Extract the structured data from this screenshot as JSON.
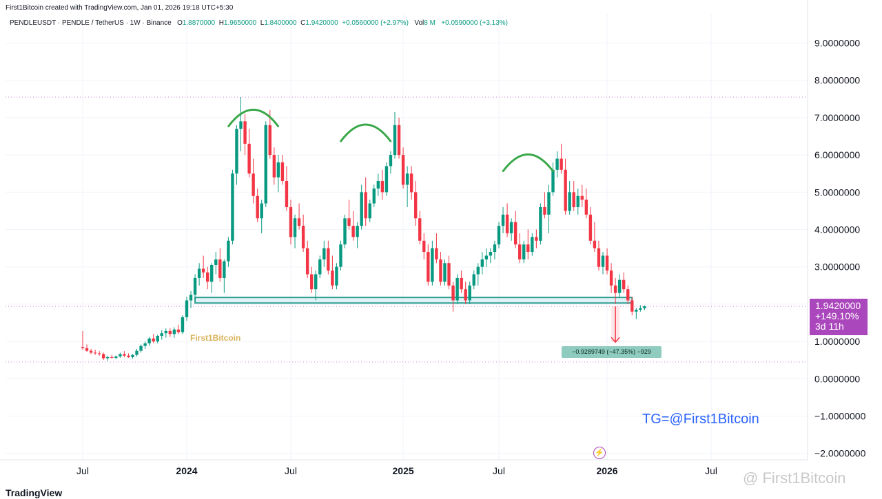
{
  "header": {
    "credit": "First1Bitcoin created with TradingView.com, Jan 01, 2026 19:18 UTC+5:30",
    "symbol": "PENDLEUSDT · PENDLE / TetherUS · 1W · Binance",
    "o_label": "O",
    "o_value": "1.8870000",
    "h_label": "H",
    "h_value": "1.9650000",
    "l_label": "L",
    "l_value": "1.8400000",
    "c_label": "C",
    "c_value": "1.9420000",
    "change": "+0.0560000 (+2.97%)",
    "vol_label": "Vol",
    "vol_value": "8 M",
    "vol_change": "+0.0590000 (+3.13%)"
  },
  "price_badge": {
    "price": "1.9420000",
    "pct": "+149.10%",
    "timer": "3d 11h"
  },
  "measure_label": "−0.9289749 (−47.35%) −929",
  "watermark_tg": "TG=@First1Bitcoin",
  "watermark_logo": "First1Bitcoin",
  "corner_watermark": "@ First1Bitcoin",
  "footer_brand": "TradingView",
  "colors": {
    "up": "#089981",
    "down": "#f23645",
    "support_zone": "#2a9d8f",
    "arc": "#3aa84a",
    "dotted_line": "#c77ad6",
    "badge": "#ab47bc",
    "tg_text": "#2962ff"
  },
  "chart_data": {
    "type": "candlestick",
    "title": "PENDLEUSDT · PENDLE / TetherUS · 1W · Binance",
    "xlabel": "",
    "ylabel": "",
    "ylim": [
      -2.1,
      9.8
    ],
    "y_ticks": [
      "9.0000000",
      "8.0000000",
      "7.0000000",
      "6.0000000",
      "5.0000000",
      "4.0000000",
      "3.0000000",
      "2.0000000",
      "1.0000000",
      "0.0000000",
      "−1.0000000",
      "−2.0000000"
    ],
    "y_tick_values": [
      9,
      8,
      7,
      6,
      5,
      4,
      3,
      2,
      1,
      0,
      -1,
      -2
    ],
    "x_ticks": [
      {
        "label": "Jul",
        "week": 0,
        "bold": false
      },
      {
        "label": "2024",
        "week": 25,
        "bold": true
      },
      {
        "label": "Jul",
        "week": 50,
        "bold": false
      },
      {
        "label": "2025",
        "week": 77,
        "bold": true
      },
      {
        "label": "Jul",
        "week": 100,
        "bold": false
      },
      {
        "label": "2026",
        "week": 126,
        "bold": true
      },
      {
        "label": "Jul",
        "week": 151,
        "bold": false
      }
    ],
    "horizontal_lines": [
      7.55,
      1.94,
      0.45
    ],
    "support_zone": {
      "from_week": 27,
      "to_week": 132,
      "low": 2.03,
      "high": 2.18
    },
    "arcs": [
      {
        "center_week": 41,
        "peak": 7.25
      },
      {
        "center_week": 68,
        "peak": 6.85
      },
      {
        "center_week": 107,
        "peak": 6.05
      }
    ],
    "measure": {
      "week": 128,
      "from": 1.94,
      "to": 0.98
    },
    "candles": [
      [
        0.85,
        1.28,
        0.78,
        0.82
      ],
      [
        0.82,
        0.92,
        0.72,
        0.75
      ],
      [
        0.75,
        0.8,
        0.66,
        0.7
      ],
      [
        0.7,
        0.78,
        0.64,
        0.68
      ],
      [
        0.68,
        0.74,
        0.62,
        0.66
      ],
      [
        0.66,
        0.7,
        0.5,
        0.55
      ],
      [
        0.55,
        0.62,
        0.48,
        0.58
      ],
      [
        0.58,
        0.64,
        0.54,
        0.56
      ],
      [
        0.56,
        0.62,
        0.52,
        0.6
      ],
      [
        0.6,
        0.7,
        0.56,
        0.66
      ],
      [
        0.66,
        0.74,
        0.58,
        0.62
      ],
      [
        0.62,
        0.68,
        0.56,
        0.58
      ],
      [
        0.58,
        0.66,
        0.54,
        0.64
      ],
      [
        0.64,
        0.8,
        0.6,
        0.75
      ],
      [
        0.75,
        0.92,
        0.7,
        0.88
      ],
      [
        0.88,
        1.0,
        0.8,
        0.95
      ],
      [
        0.95,
        1.12,
        0.88,
        1.08
      ],
      [
        1.08,
        1.2,
        0.96,
        1.0
      ],
      [
        1.0,
        1.18,
        0.95,
        1.15
      ],
      [
        1.15,
        1.3,
        1.05,
        1.22
      ],
      [
        1.22,
        1.35,
        1.1,
        1.28
      ],
      [
        1.28,
        1.35,
        1.12,
        1.2
      ],
      [
        1.2,
        1.38,
        1.1,
        1.32
      ],
      [
        1.32,
        1.45,
        1.2,
        1.25
      ],
      [
        1.25,
        1.7,
        1.2,
        1.65
      ],
      [
        1.65,
        2.2,
        1.55,
        2.1
      ],
      [
        2.1,
        2.35,
        1.9,
        2.25
      ],
      [
        2.25,
        2.8,
        2.1,
        2.7
      ],
      [
        2.7,
        3.1,
        2.5,
        2.95
      ],
      [
        2.95,
        3.3,
        2.7,
        2.85
      ],
      [
        2.85,
        3.0,
        2.4,
        2.6
      ],
      [
        2.6,
        3.1,
        2.3,
        3.05
      ],
      [
        3.05,
        3.4,
        2.8,
        3.2
      ],
      [
        3.2,
        3.5,
        2.6,
        2.7
      ],
      [
        2.7,
        3.2,
        2.3,
        3.15
      ],
      [
        3.15,
        3.8,
        3.0,
        3.7
      ],
      [
        3.7,
        5.6,
        3.6,
        5.5
      ],
      [
        5.5,
        6.8,
        5.2,
        6.7
      ],
      [
        6.7,
        7.55,
        6.1,
        6.9
      ],
      [
        6.9,
        7.1,
        6.0,
        6.3
      ],
      [
        6.3,
        6.7,
        5.4,
        5.5
      ],
      [
        5.5,
        5.9,
        4.7,
        4.9
      ],
      [
        4.9,
        5.1,
        4.2,
        4.3
      ],
      [
        4.3,
        4.8,
        3.9,
        4.7
      ],
      [
        4.7,
        6.9,
        4.6,
        6.8
      ],
      [
        6.8,
        7.2,
        5.9,
        6.0
      ],
      [
        6.0,
        6.2,
        5.2,
        5.4
      ],
      [
        5.4,
        6.0,
        5.0,
        5.8
      ],
      [
        5.8,
        6.0,
        5.2,
        5.3
      ],
      [
        5.3,
        5.7,
        4.5,
        4.6
      ],
      [
        4.6,
        4.8,
        3.6,
        3.8
      ],
      [
        3.8,
        4.4,
        3.5,
        4.3
      ],
      [
        4.3,
        4.7,
        4.0,
        4.1
      ],
      [
        4.1,
        4.4,
        3.4,
        3.5
      ],
      [
        3.5,
        3.7,
        2.7,
        2.8
      ],
      [
        2.8,
        3.0,
        2.3,
        2.4
      ],
      [
        2.4,
        2.9,
        2.1,
        2.8
      ],
      [
        2.8,
        3.3,
        2.7,
        3.2
      ],
      [
        3.2,
        3.7,
        3.0,
        3.5
      ],
      [
        3.5,
        3.7,
        2.8,
        2.9
      ],
      [
        2.9,
        3.3,
        2.4,
        2.5
      ],
      [
        2.5,
        3.1,
        2.4,
        3.0
      ],
      [
        3.0,
        3.7,
        2.9,
        3.6
      ],
      [
        3.6,
        4.4,
        3.5,
        4.3
      ],
      [
        4.3,
        4.8,
        4.0,
        4.1
      ],
      [
        4.1,
        4.5,
        3.7,
        3.8
      ],
      [
        3.8,
        4.2,
        3.5,
        4.1
      ],
      [
        4.1,
        5.2,
        4.0,
        5.0
      ],
      [
        5.0,
        5.4,
        4.1,
        4.3
      ],
      [
        4.3,
        4.8,
        4.2,
        4.7
      ],
      [
        4.7,
        5.2,
        4.6,
        5.1
      ],
      [
        5.1,
        5.5,
        4.9,
        5.3
      ],
      [
        5.3,
        5.6,
        4.8,
        5.0
      ],
      [
        5.0,
        5.8,
        4.9,
        5.7
      ],
      [
        5.7,
        6.1,
        5.5,
        6.0
      ],
      [
        6.0,
        7.15,
        5.9,
        6.8
      ],
      [
        6.8,
        7.0,
        5.9,
        6.0
      ],
      [
        6.0,
        6.2,
        5.1,
        5.2
      ],
      [
        5.2,
        5.7,
        4.6,
        5.5
      ],
      [
        5.5,
        5.7,
        4.8,
        5.0
      ],
      [
        5.0,
        5.3,
        4.1,
        4.3
      ],
      [
        4.3,
        4.5,
        3.6,
        3.7
      ],
      [
        3.7,
        3.9,
        3.2,
        3.4
      ],
      [
        3.4,
        3.6,
        2.5,
        2.6
      ],
      [
        2.6,
        3.7,
        2.5,
        3.5
      ],
      [
        3.5,
        3.9,
        3.1,
        3.2
      ],
      [
        3.2,
        3.4,
        2.5,
        2.6
      ],
      [
        2.6,
        3.2,
        2.5,
        3.1
      ],
      [
        3.1,
        3.3,
        2.4,
        2.5
      ],
      [
        2.5,
        2.6,
        1.8,
        2.1
      ],
      [
        2.1,
        2.8,
        2.0,
        2.7
      ],
      [
        2.7,
        2.9,
        2.3,
        2.4
      ],
      [
        2.4,
        2.6,
        2.0,
        2.1
      ],
      [
        2.1,
        2.6,
        2.0,
        2.5
      ],
      [
        2.5,
        2.9,
        2.4,
        2.8
      ],
      [
        2.8,
        3.1,
        2.5,
        3.0
      ],
      [
        3.0,
        3.4,
        2.8,
        3.2
      ],
      [
        3.2,
        3.5,
        3.0,
        3.3
      ],
      [
        3.3,
        3.5,
        3.1,
        3.4
      ],
      [
        3.4,
        3.7,
        3.2,
        3.6
      ],
      [
        3.6,
        4.2,
        3.5,
        4.1
      ],
      [
        4.1,
        4.6,
        3.9,
        4.4
      ],
      [
        4.4,
        4.7,
        3.8,
        3.9
      ],
      [
        3.9,
        4.3,
        3.7,
        4.2
      ],
      [
        4.2,
        4.5,
        3.5,
        3.6
      ],
      [
        3.6,
        3.9,
        3.1,
        3.2
      ],
      [
        3.2,
        3.7,
        3.1,
        3.6
      ],
      [
        3.6,
        4.0,
        3.2,
        3.4
      ],
      [
        3.4,
        3.9,
        3.3,
        3.8
      ],
      [
        3.8,
        4.0,
        3.5,
        3.7
      ],
      [
        3.7,
        4.7,
        3.6,
        4.6
      ],
      [
        4.6,
        5.0,
        4.3,
        4.4
      ],
      [
        4.4,
        5.2,
        3.9,
        5.0
      ],
      [
        5.0,
        5.8,
        4.9,
        5.6
      ],
      [
        5.6,
        6.1,
        5.4,
        5.9
      ],
      [
        5.9,
        6.3,
        5.5,
        5.6
      ],
      [
        5.6,
        5.9,
        4.4,
        4.5
      ],
      [
        4.5,
        5.3,
        4.4,
        5.0
      ],
      [
        5.0,
        5.3,
        4.5,
        4.6
      ],
      [
        4.6,
        5.1,
        4.4,
        4.9
      ],
      [
        4.9,
        5.2,
        4.6,
        4.8
      ],
      [
        4.8,
        5.1,
        4.3,
        4.4
      ],
      [
        4.4,
        4.6,
        3.6,
        3.7
      ],
      [
        3.7,
        4.2,
        3.4,
        3.5
      ],
      [
        3.5,
        3.7,
        2.9,
        3.0
      ],
      [
        3.0,
        3.4,
        2.8,
        3.3
      ],
      [
        3.3,
        3.5,
        2.8,
        2.9
      ],
      [
        2.9,
        3.1,
        2.3,
        2.5
      ],
      [
        2.5,
        2.7,
        2.0,
        2.3
      ],
      [
        2.3,
        2.8,
        2.2,
        2.65
      ],
      [
        2.65,
        2.85,
        2.3,
        2.4
      ],
      [
        2.4,
        2.5,
        2.0,
        2.1
      ],
      [
        2.1,
        2.2,
        1.7,
        1.8
      ],
      [
        1.8,
        1.9,
        1.6,
        1.85
      ],
      [
        1.85,
        1.97,
        1.8,
        1.89
      ],
      [
        1.887,
        1.965,
        1.84,
        1.942
      ]
    ]
  }
}
